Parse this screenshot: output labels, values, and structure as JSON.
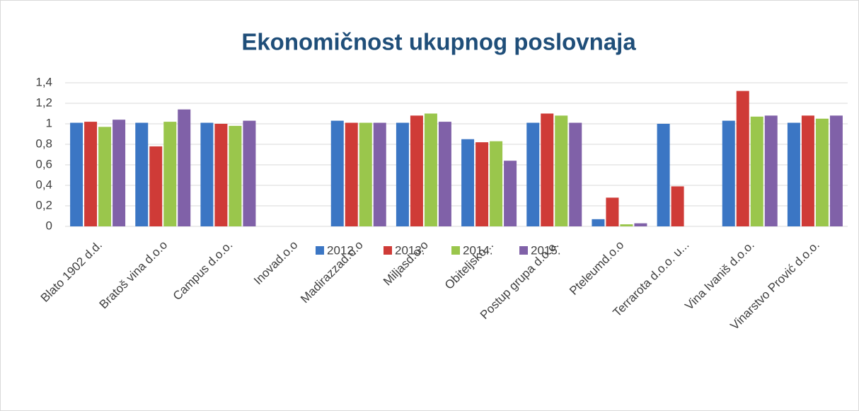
{
  "chart_data": {
    "type": "bar",
    "title": "Ekonomičnost ukupnog poslovnaja",
    "categories": [
      "Blato 1902 d.d.",
      "Bratoš vina d.o.o",
      "Campus d.o.o.",
      "Inovad.o.o",
      "Madirazzad.o.o",
      "Miljasd.o.o",
      "Obiteljsko...",
      "Postup grupa d.o.o.",
      "Pteleumd.o.o",
      "Terrarota d.o.o. u...",
      "Vina Ivaniš d.o.o.",
      "Vinarstvo Prović d.o.o."
    ],
    "series": [
      {
        "name": "2012.",
        "color": "#3b76c4",
        "values": [
          1.01,
          1.01,
          1.01,
          null,
          1.03,
          1.01,
          0.85,
          1.01,
          0.07,
          1.0,
          1.03,
          1.01
        ]
      },
      {
        "name": "2013.",
        "color": "#cf3b37",
        "values": [
          1.02,
          0.78,
          1.0,
          null,
          1.01,
          1.08,
          0.82,
          1.1,
          0.28,
          0.39,
          1.32,
          1.08
        ]
      },
      {
        "name": "2014.",
        "color": "#9ac64c",
        "values": [
          0.97,
          1.02,
          0.98,
          null,
          1.01,
          1.1,
          0.83,
          1.08,
          0.02,
          null,
          1.07,
          1.05
        ]
      },
      {
        "name": "2015.",
        "color": "#8061a8",
        "values": [
          1.04,
          1.14,
          1.03,
          null,
          1.01,
          1.02,
          0.64,
          1.01,
          0.03,
          null,
          1.08,
          1.08
        ]
      }
    ],
    "ylim": [
      0,
      1.4
    ],
    "yticks": [
      0,
      {
        "value": 0.2,
        "label": "0,2"
      },
      {
        "value": 0.4,
        "label": "0,4"
      },
      {
        "value": 0.6,
        "label": "0,6"
      },
      {
        "value": 0.8,
        "label": "0,8"
      },
      1,
      {
        "value": 1.2,
        "label": "1,2"
      },
      {
        "value": 1.4,
        "label": "1,4"
      }
    ],
    "grid": true,
    "legend": "bottom"
  }
}
